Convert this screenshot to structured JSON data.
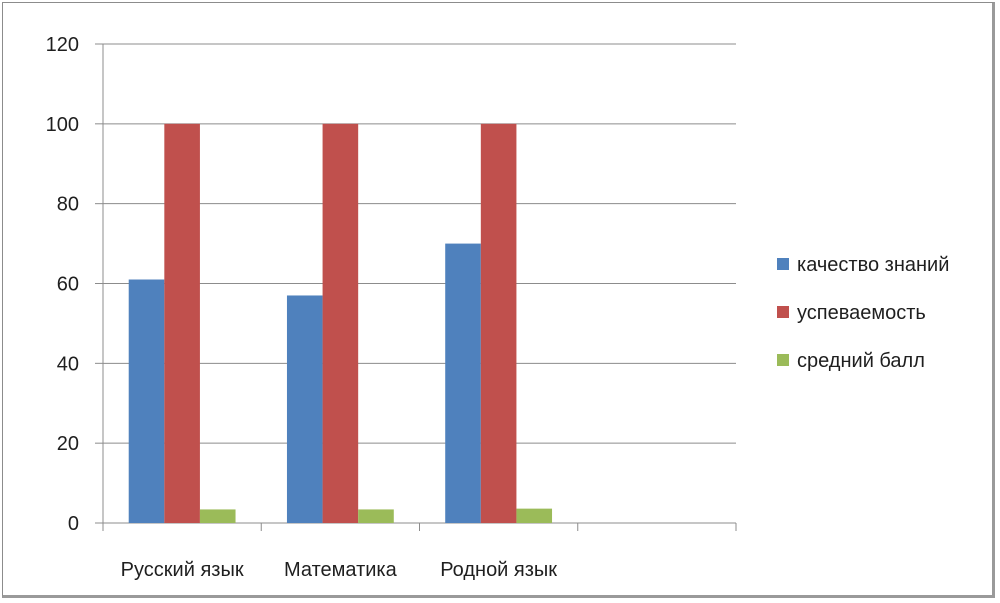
{
  "chart_data": {
    "type": "bar",
    "title": "",
    "xlabel": "",
    "ylabel": "",
    "categories": [
      "Русский язык",
      "Математика",
      "Родной язык",
      ""
    ],
    "series": [
      {
        "name": "качество знаний",
        "color": "#4f81bd",
        "values": [
          61,
          57,
          70,
          null
        ]
      },
      {
        "name": "успеваемость",
        "color": "#c0504d",
        "values": [
          100,
          100,
          100,
          null
        ]
      },
      {
        "name": "средний балл",
        "color": "#9bbb59",
        "values": [
          3.4,
          3.4,
          3.6,
          null
        ]
      }
    ],
    "ylim": [
      0,
      120
    ],
    "yticks": [
      0,
      20,
      40,
      60,
      80,
      100,
      120
    ],
    "grid": true,
    "legend_position": "right"
  }
}
